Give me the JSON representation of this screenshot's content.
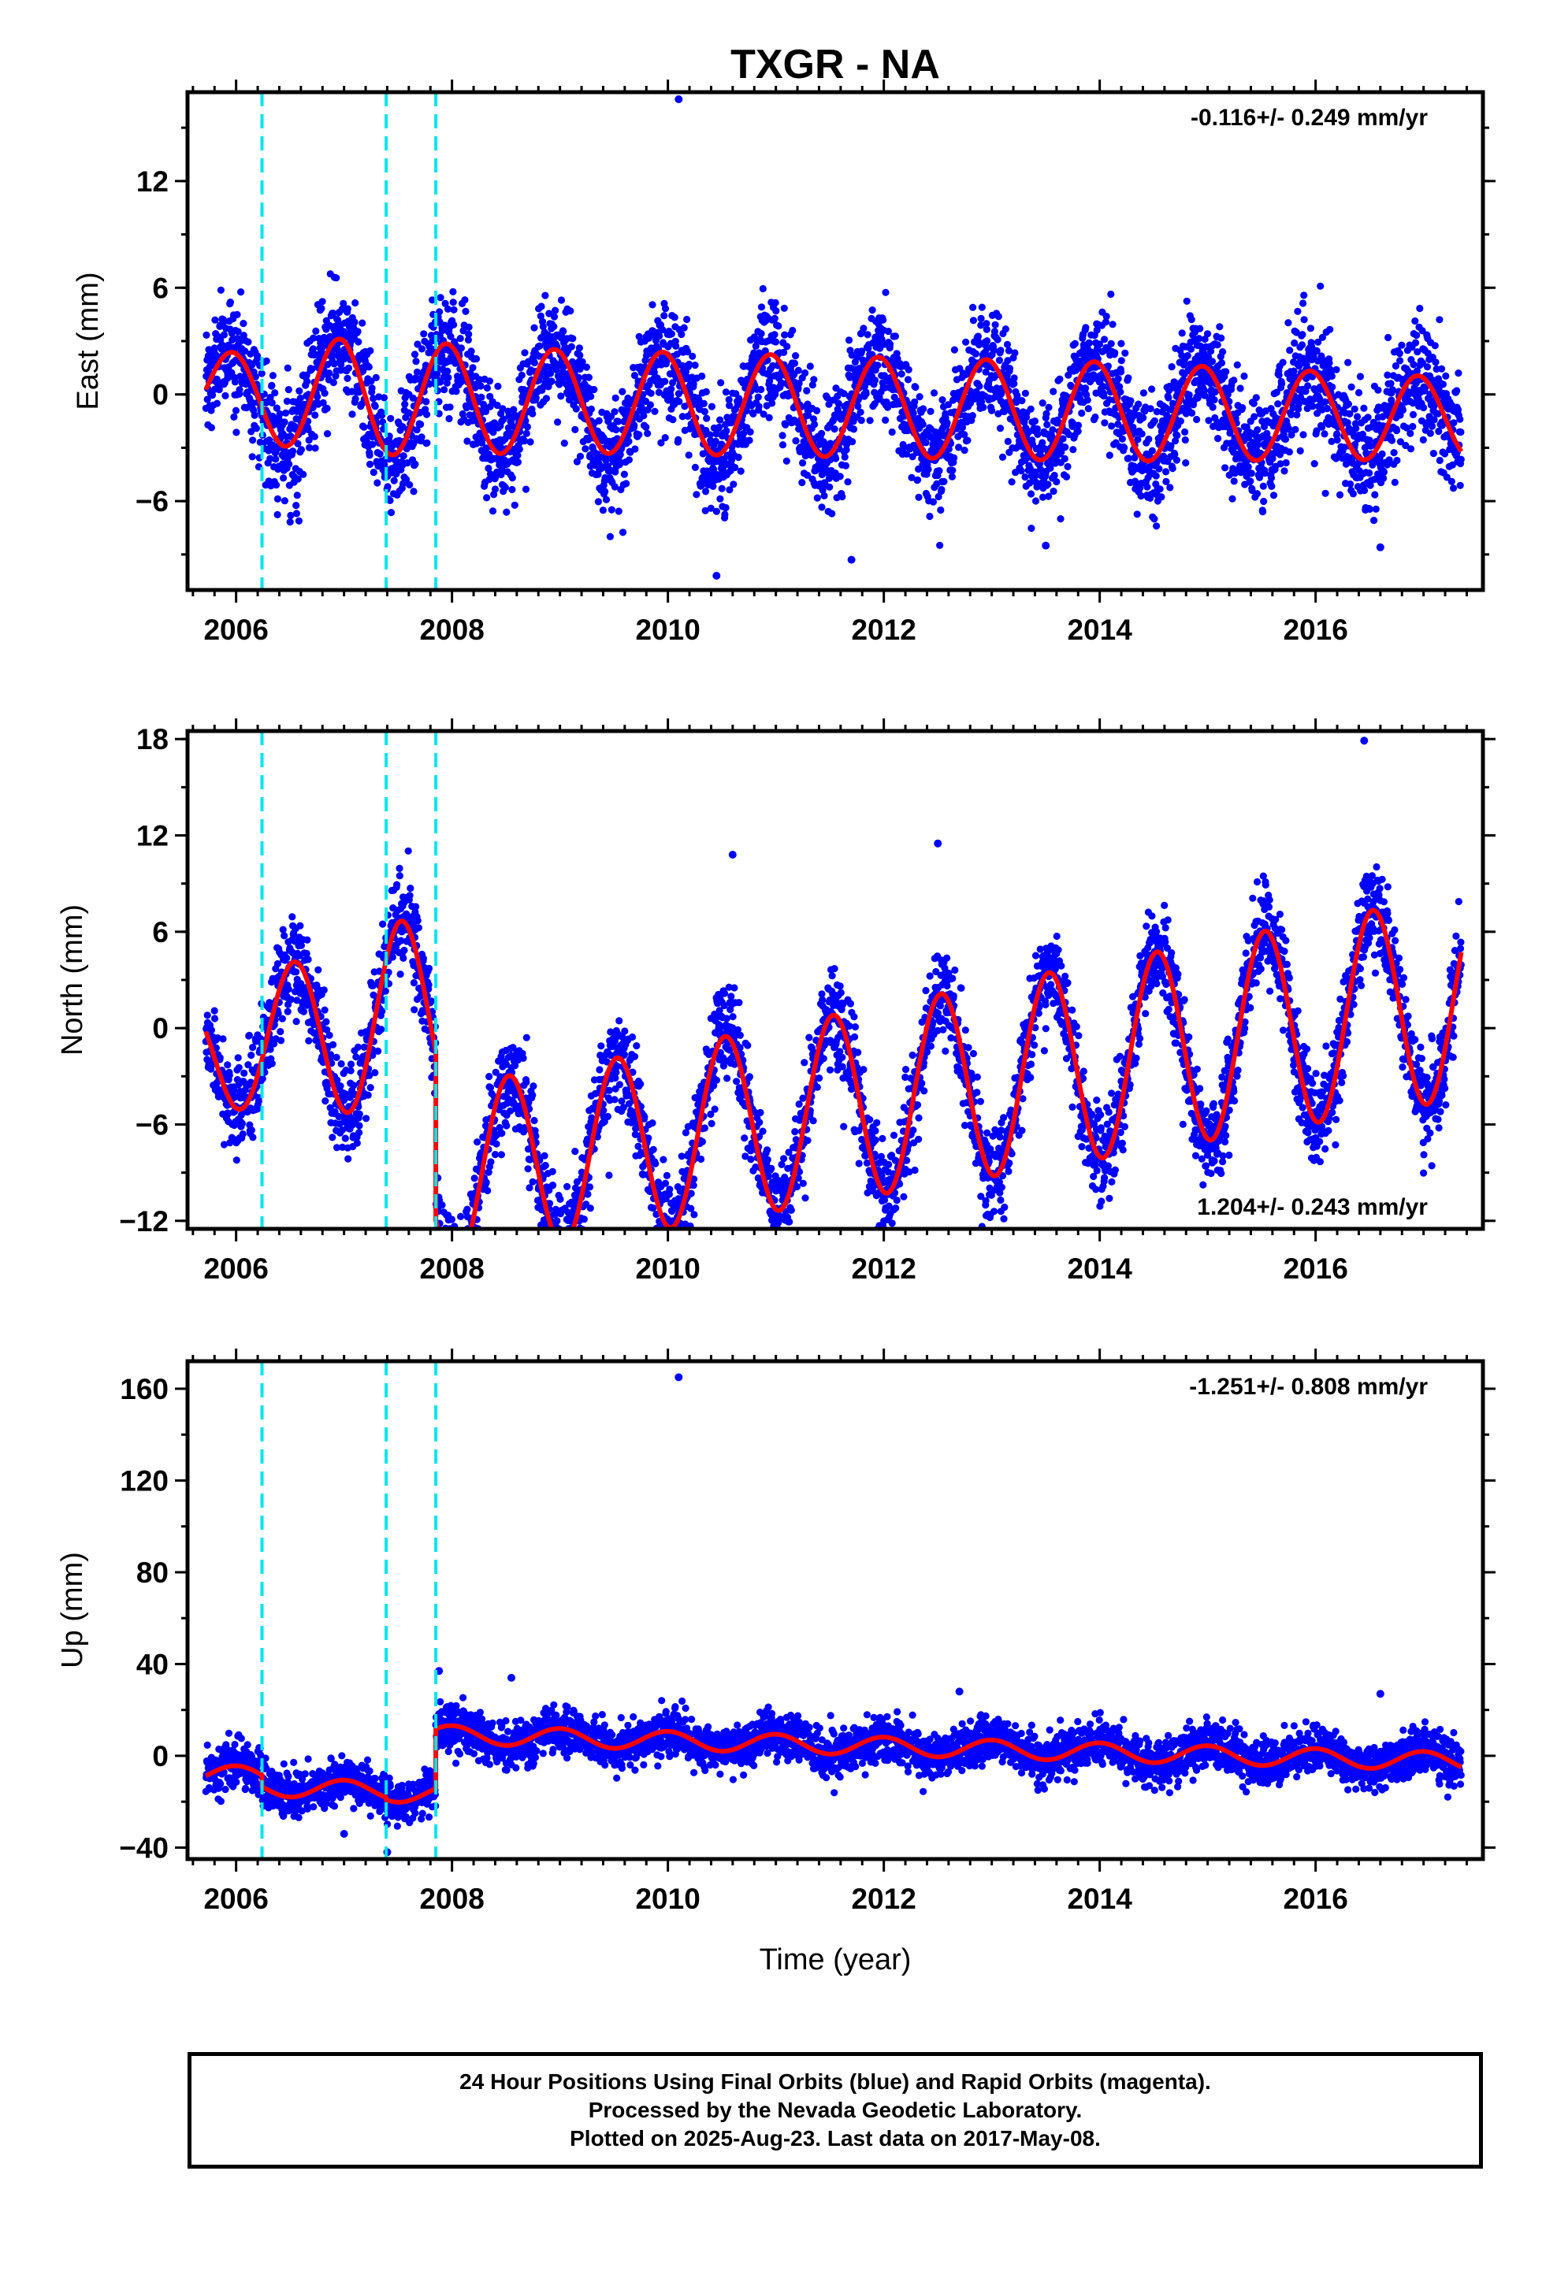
{
  "chart_data": [
    {
      "type": "scatter",
      "title": "TXGR - NA",
      "ylabel": "East (mm)",
      "xlabel": "",
      "xlim": [
        2005.55,
        2017.55
      ],
      "ylim": [
        -11,
        17
      ],
      "xticks": [
        2006,
        2008,
        2010,
        2012,
        2014,
        2016
      ],
      "xtick_labels": [
        "2006",
        "2008",
        "2010",
        "2012",
        "2014",
        "2016"
      ],
      "yticks": [
        -6,
        0,
        6,
        12
      ],
      "ytick_labels": [
        "−6",
        "0",
        "6",
        "12"
      ],
      "rate_label": "-0.116+/- 0.249 mm/yr",
      "rate_position": "top-right",
      "breaks": [
        2006.24,
        2007.39,
        2007.85
      ],
      "data_start": 2005.72,
      "data_end": 2017.35,
      "model": {
        "mean": 0,
        "trend": -0.116,
        "annual_amp": 3.1,
        "annual_phase": 0.7,
        "offsets": [],
        "growth": [
          [
            2005.72,
            2.2
          ],
          [
            2007.0,
            3.3
          ],
          [
            2009.0,
            2.9
          ],
          [
            2013.0,
            2.8
          ],
          [
            2014.0,
            2.8
          ],
          [
            2017.35,
            2.3
          ]
        ]
      },
      "noise": 1.6,
      "outliers": [
        [
          2010.1,
          16.6
        ],
        [
          2011.7,
          -9.3
        ],
        [
          2013.5,
          -8.5
        ],
        [
          2016.6,
          -8.6
        ],
        [
          2010.45,
          -10.2
        ]
      ],
      "points_color": "#0000ff",
      "model_color": "#ff0000",
      "break_color": "#00e5ee"
    },
    {
      "type": "scatter",
      "title": "",
      "ylabel": "North (mm)",
      "xlabel": "",
      "xlim": [
        2005.55,
        2017.55
      ],
      "ylim": [
        -12.5,
        18.5
      ],
      "xticks": [
        2006,
        2008,
        2010,
        2012,
        2014,
        2016
      ],
      "xtick_labels": [
        "2006",
        "2008",
        "2010",
        "2012",
        "2014",
        "2016"
      ],
      "yticks": [
        -12,
        -6,
        0,
        6,
        12,
        18
      ],
      "ytick_labels": [
        "−12",
        "−6",
        "0",
        "6",
        "12",
        "18"
      ],
      "rate_label": "1.204+/- 0.243 mm/yr",
      "rate_position": "bottom-right",
      "breaks": [
        2006.24,
        2007.39,
        2007.85
      ],
      "data_start": 2005.72,
      "data_end": 2017.35,
      "model": {
        "mean": -1.5,
        "trend": 1.204,
        "annual_amp": 5.5,
        "annual_phase": 0.28,
        "offsets": [
          [
            2007.85,
            -10.5
          ]
        ],
        "growth": [
          [
            2005.72,
            3.5
          ],
          [
            2007.5,
            6.0
          ],
          [
            2009.0,
            5.5
          ],
          [
            2013.0,
            6.0
          ],
          [
            2017.35,
            6.4
          ]
        ]
      },
      "noise": 1.5,
      "outliers": [
        [
          2008.9,
          -11.8
        ],
        [
          2010.6,
          10.8
        ],
        [
          2016.45,
          17.9
        ],
        [
          2012.5,
          11.5
        ]
      ],
      "points_color": "#0000ff",
      "model_color": "#ff0000",
      "break_color": "#00e5ee"
    },
    {
      "type": "scatter",
      "title": "",
      "ylabel": "Up (mm)",
      "xlabel": "Time (year)",
      "xlim": [
        2005.55,
        2017.55
      ],
      "ylim": [
        -45,
        172
      ],
      "xticks": [
        2006,
        2008,
        2010,
        2012,
        2014,
        2016
      ],
      "xtick_labels": [
        "2006",
        "2008",
        "2010",
        "2012",
        "2014",
        "2016"
      ],
      "yticks": [
        -40,
        0,
        40,
        80,
        120,
        160
      ],
      "ytick_labels": [
        "−40",
        "0",
        "40",
        "80",
        "120",
        "160"
      ],
      "rate_label": "-1.251+/- 0.808 mm/yr",
      "rate_position": "top-right",
      "breaks": [
        2006.24,
        2007.39,
        2007.85
      ],
      "data_start": 2005.72,
      "data_end": 2017.35,
      "model": {
        "mean": -8,
        "trend": -1.251,
        "annual_amp": 4.0,
        "annual_phase": 0.75,
        "offsets": [
          [
            2006.24,
            -5
          ],
          [
            2007.39,
            -1
          ],
          [
            2007.85,
            26
          ]
        ],
        "growth": []
      },
      "noise": 5,
      "outliers": [
        [
          2010.1,
          165
        ],
        [
          2008.55,
          34
        ],
        [
          2007.4,
          -42
        ],
        [
          2007.0,
          -34
        ],
        [
          2016.6,
          27
        ],
        [
          2012.7,
          28
        ],
        [
          2007.88,
          37
        ]
      ],
      "points_color": "#0000ff",
      "model_color": "#ff0000",
      "break_color": "#00e5ee"
    }
  ],
  "caption": {
    "line1": "24 Hour Positions Using Final Orbits (blue) and Rapid Orbits (magenta).",
    "line2": "Processed by the Nevada Geodetic Laboratory.",
    "line3": "Plotted on 2025-Aug-23. Last data on 2017-May-08."
  }
}
